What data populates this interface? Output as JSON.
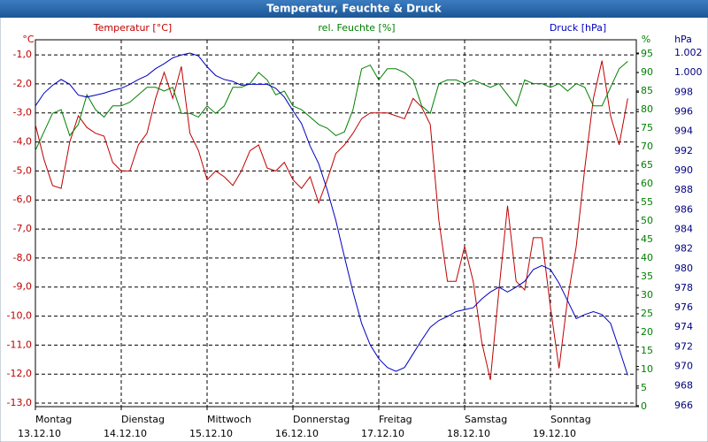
{
  "chart_data": {
    "type": "line",
    "title": "Temperatur, Feuchte & Druck",
    "y_unit": "°C",
    "y2_unit": "%",
    "y3_unit": "hPa",
    "xlim": [
      0,
      7
    ],
    "xticks": [
      {
        "value": 0,
        "label": "Montag",
        "date": "13.12.10"
      },
      {
        "value": 1,
        "label": "Dienstag",
        "date": "14.12.10"
      },
      {
        "value": 2,
        "label": "Mittwoch",
        "date": "15.12.10"
      },
      {
        "value": 3,
        "label": "Donnerstag",
        "date": "16.12.10"
      },
      {
        "value": 4,
        "label": "Freitag",
        "date": "17.12.10"
      },
      {
        "value": 5,
        "label": "Samstag",
        "date": "18.12.10"
      },
      {
        "value": 6,
        "label": "Sonntag",
        "date": "19.12.10"
      }
    ],
    "grid": true,
    "ylim": [
      -13.12,
      -0.48
    ],
    "yticks": [
      {
        "value": -1,
        "label": "-1,0"
      },
      {
        "value": -2,
        "label": "-2,0"
      },
      {
        "value": -3,
        "label": "-3,0"
      },
      {
        "value": -4,
        "label": "-4,0"
      },
      {
        "value": -5,
        "label": "-5,0"
      },
      {
        "value": -6,
        "label": "-6,0"
      },
      {
        "value": -7,
        "label": "-7,0"
      },
      {
        "value": -8,
        "label": "-8,0"
      },
      {
        "value": -9,
        "label": "-9,0"
      },
      {
        "value": -10,
        "label": "-10,0"
      },
      {
        "value": -11,
        "label": "-11,0"
      },
      {
        "value": -12,
        "label": "-12,0"
      },
      {
        "value": -13,
        "label": "-13,0"
      }
    ],
    "y2lim": [
      0,
      98.8
    ],
    "y2ticks": [
      0,
      5,
      10,
      15,
      20,
      25,
      30,
      35,
      40,
      45,
      50,
      55,
      60,
      65,
      70,
      75,
      80,
      85,
      90,
      95
    ],
    "y3lim": [
      965.9,
      1003.35
    ],
    "y3ticks": [
      966,
      968,
      970,
      972,
      974,
      976,
      978,
      980,
      982,
      984,
      986,
      988,
      990,
      992,
      994,
      996,
      998,
      {
        "value": 1000,
        "label": "1.000"
      },
      {
        "value": 1002,
        "label": "1.002"
      }
    ],
    "x": [
      0,
      0.1,
      0.2,
      0.3,
      0.4,
      0.5,
      0.6,
      0.7,
      0.8,
      0.9,
      1,
      1.1,
      1.2,
      1.3,
      1.4,
      1.5,
      1.6,
      1.7,
      1.8,
      1.9,
      2,
      2.1,
      2.2,
      2.3,
      2.4,
      2.5,
      2.6,
      2.7,
      2.8,
      2.9,
      3,
      3.1,
      3.2,
      3.3,
      3.4,
      3.5,
      3.6,
      3.7,
      3.8,
      3.9,
      4,
      4.1,
      4.2,
      4.3,
      4.4,
      4.5,
      4.6,
      4.7,
      4.8,
      4.9,
      5,
      5.1,
      5.2,
      5.3,
      5.4,
      5.5,
      5.6,
      5.7,
      5.8,
      5.9,
      6,
      6.1,
      6.2,
      6.3,
      6.4,
      6.5,
      6.6,
      6.7,
      6.8,
      6.9
    ],
    "series": [
      {
        "name": "Temperatur [°C]",
        "color": "#c00000",
        "axis": "y",
        "values": [
          -3.4,
          -4.6,
          -5.5,
          -5.6,
          -4.0,
          -3.1,
          -3.5,
          -3.7,
          -3.8,
          -4.7,
          -5.0,
          -5.0,
          -4.1,
          -3.7,
          -2.5,
          -1.6,
          -2.5,
          -1.4,
          -3.7,
          -4.3,
          -5.3,
          -5.0,
          -5.2,
          -5.5,
          -5.0,
          -4.3,
          -4.1,
          -4.9,
          -5.0,
          -4.7,
          -5.3,
          -5.6,
          -5.2,
          -6.1,
          -5.3,
          -4.4,
          -4.1,
          -3.7,
          -3.2,
          -3.0,
          -3.0,
          -3.0,
          -3.1,
          -3.2,
          -2.5,
          -2.8,
          -3.4,
          -6.7,
          -8.8,
          -8.8,
          -7.6,
          -8.8,
          -10.9,
          -12.2,
          -9.1,
          -6.2,
          -8.8,
          -9.1,
          -7.3,
          -7.3,
          -9.7,
          -11.8,
          -9.4,
          -7.6,
          -4.9,
          -2.5,
          -1.2,
          -3.1,
          -4.1,
          -2.5
        ]
      },
      {
        "name": "rel. Feuchte [%]",
        "color": "#008000",
        "axis": "y2",
        "values": [
          69,
          74,
          79,
          80,
          73,
          76,
          84,
          80,
          78,
          81,
          81,
          82,
          84,
          86,
          86,
          85,
          86,
          79,
          79,
          78,
          81,
          79,
          81,
          86,
          86,
          87,
          90,
          88,
          84,
          85,
          81,
          80,
          78,
          76,
          75,
          73,
          74,
          80,
          91,
          92,
          88,
          91,
          91,
          90,
          88,
          81,
          79,
          87,
          88,
          88,
          87,
          88,
          87,
          86,
          87,
          84,
          81,
          88,
          87,
          87,
          86,
          87,
          85,
          87,
          86,
          81,
          81,
          86,
          91,
          93
        ]
      },
      {
        "name": "Druck [hPa]",
        "color": "#0000c0",
        "axis": "y3",
        "values": [
          996.6,
          997.9,
          998.7,
          999.3,
          998.8,
          997.7,
          997.5,
          997.7,
          997.9,
          998.2,
          998.4,
          998.8,
          999.3,
          999.7,
          1000.4,
          1000.9,
          1001.5,
          1001.8,
          1002.0,
          1001.7,
          1000.6,
          999.7,
          999.3,
          999.1,
          998.7,
          998.8,
          998.8,
          998.8,
          998.4,
          997.5,
          996.1,
          994.8,
          992.5,
          990.7,
          988.0,
          984.9,
          981.2,
          977.6,
          974.4,
          972.2,
          970.8,
          969.9,
          969.5,
          969.9,
          971.3,
          972.7,
          974.0,
          974.7,
          975.1,
          975.6,
          975.8,
          976.0,
          976.9,
          977.6,
          978.1,
          977.6,
          978.1,
          978.7,
          979.9,
          980.3,
          979.9,
          978.5,
          976.7,
          974.9,
          975.3,
          975.6,
          975.3,
          974.4,
          971.8,
          969.1
        ]
      }
    ]
  }
}
